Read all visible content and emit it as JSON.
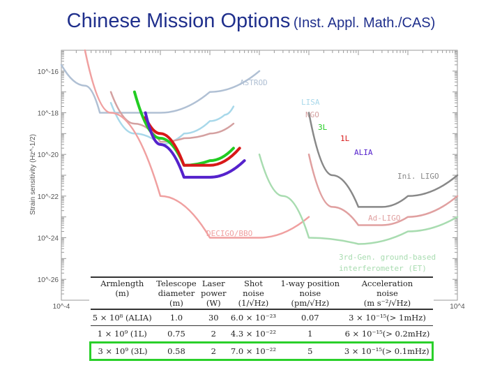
{
  "slide": {
    "title_main": "Chinese Mission Options",
    "title_sub": "(Inst. Appl. Math./CAS)"
  },
  "chart_data": {
    "type": "line",
    "title": "",
    "xlabel": "",
    "ylabel": "Strain sensitivity (Hz^-1/2)",
    "xscale": "log",
    "yscale": "log",
    "xlim": [
      0.0001,
      10000
    ],
    "ylim": [
      1e-27,
      1e-15
    ],
    "grid": false,
    "x_tick_labels": [
      "10^-4",
      "10^4"
    ],
    "y_tick_labels": [
      "10^-16",
      "10^-18",
      "10^-20",
      "10^-22",
      "10^-24",
      "10^-26"
    ],
    "series": [
      {
        "name": "ASTROD",
        "color": "#b0c0d4",
        "x": [
          0.0001,
          0.0003,
          0.0006,
          0.001,
          0.003,
          0.01,
          0.1,
          1.0
        ],
        "y": [
          2e-16,
          2e-17,
          1e-18,
          1e-18,
          1e-18,
          1e-18,
          1e-17,
          1e-16
        ]
      },
      {
        "name": "LISA",
        "color": "#a8d8ea",
        "x": [
          0.001,
          0.003,
          0.01,
          0.03,
          0.1,
          0.2,
          0.3
        ],
        "y": [
          3e-18,
          1e-19,
          3e-20,
          1e-19,
          4e-19,
          8e-19,
          2e-18
        ]
      },
      {
        "name": "NGO",
        "color": "#d4a0a0",
        "x": [
          0.001,
          0.003,
          0.01,
          0.03,
          0.1,
          0.3
        ],
        "y": [
          1e-17,
          3e-19,
          4e-20,
          6e-20,
          1e-19,
          3e-19
        ]
      },
      {
        "name": "3L",
        "color": "#22cc22",
        "x": [
          0.003,
          0.01,
          0.03,
          0.1,
          0.3
        ],
        "y": [
          1e-17,
          6e-20,
          3e-21,
          5e-21,
          2e-20
        ]
      },
      {
        "name": "1L",
        "color": "#d81818",
        "x": [
          0.005,
          0.01,
          0.03,
          0.1,
          0.4
        ],
        "y": [
          6e-19,
          1e-19,
          3e-21,
          3e-21,
          2e-20
        ]
      },
      {
        "name": "ALIA",
        "color": "#5522cc",
        "x": [
          0.005,
          0.01,
          0.03,
          0.1,
          0.5
        ],
        "y": [
          1e-18,
          3e-20,
          8e-22,
          8e-22,
          5e-21
        ]
      },
      {
        "name": "Ini. LIGO",
        "color": "#888888",
        "x": [
          10,
          30,
          100,
          300,
          1000,
          10000
        ],
        "y": [
          1e-18,
          1e-21,
          3e-23,
          3e-23,
          1e-22,
          1e-21
        ]
      },
      {
        "name": "Ad-LIGO",
        "color": "#e0a0a0",
        "x": [
          10,
          30,
          100,
          300,
          1000,
          10000
        ],
        "y": [
          1e-20,
          3e-23,
          4e-24,
          4e-24,
          1e-23,
          1e-22
        ]
      },
      {
        "name": "DECIGO/BBO",
        "color": "#f0a0a0",
        "x": [
          0.0003,
          0.001,
          0.01,
          0.1,
          1,
          10
        ],
        "y": [
          1e-15,
          1e-18,
          1e-22,
          1e-24,
          1e-24,
          1e-23
        ]
      },
      {
        "name": "3rd-Gen. ground-based interferometer (ET)",
        "color": "#a8dcb0",
        "x": [
          1,
          3,
          10,
          100,
          1000,
          10000
        ],
        "y": [
          1e-20,
          1e-22,
          1e-24,
          5e-25,
          2e-24,
          1e-23
        ]
      }
    ]
  },
  "table": {
    "headers": [
      [
        "Armlength",
        "(m)"
      ],
      [
        "Telescope",
        "diameter",
        "(m)"
      ],
      [
        "Laser",
        "power",
        "(W)"
      ],
      [
        "Shot",
        "noise",
        "(1/√Hz)"
      ],
      [
        "1-way position",
        "noise",
        "(pm/√Hz)"
      ],
      [
        "Acceleration",
        "noise",
        "(m s⁻²/√Hz)"
      ]
    ],
    "rows": [
      [
        "5 × 10⁸ (ALIA)",
        "1.0",
        "30",
        "6.0 × 10⁻²³",
        "0.07",
        "3 × 10⁻¹⁵(> 1mHz)"
      ],
      [
        "1 × 10⁹ (1L)",
        "0.75",
        "2",
        "4.3 × 10⁻²²",
        "1",
        "6 × 10⁻¹⁵(> 0.2mHz)"
      ],
      [
        "3 × 10⁹ (3L)",
        "0.58",
        "2",
        "7.0 × 10⁻²²",
        "5",
        "3 × 10⁻¹⁵(> 0.1mHz)"
      ]
    ],
    "highlight_row": 2,
    "highlight_color": "#2ad02a"
  }
}
